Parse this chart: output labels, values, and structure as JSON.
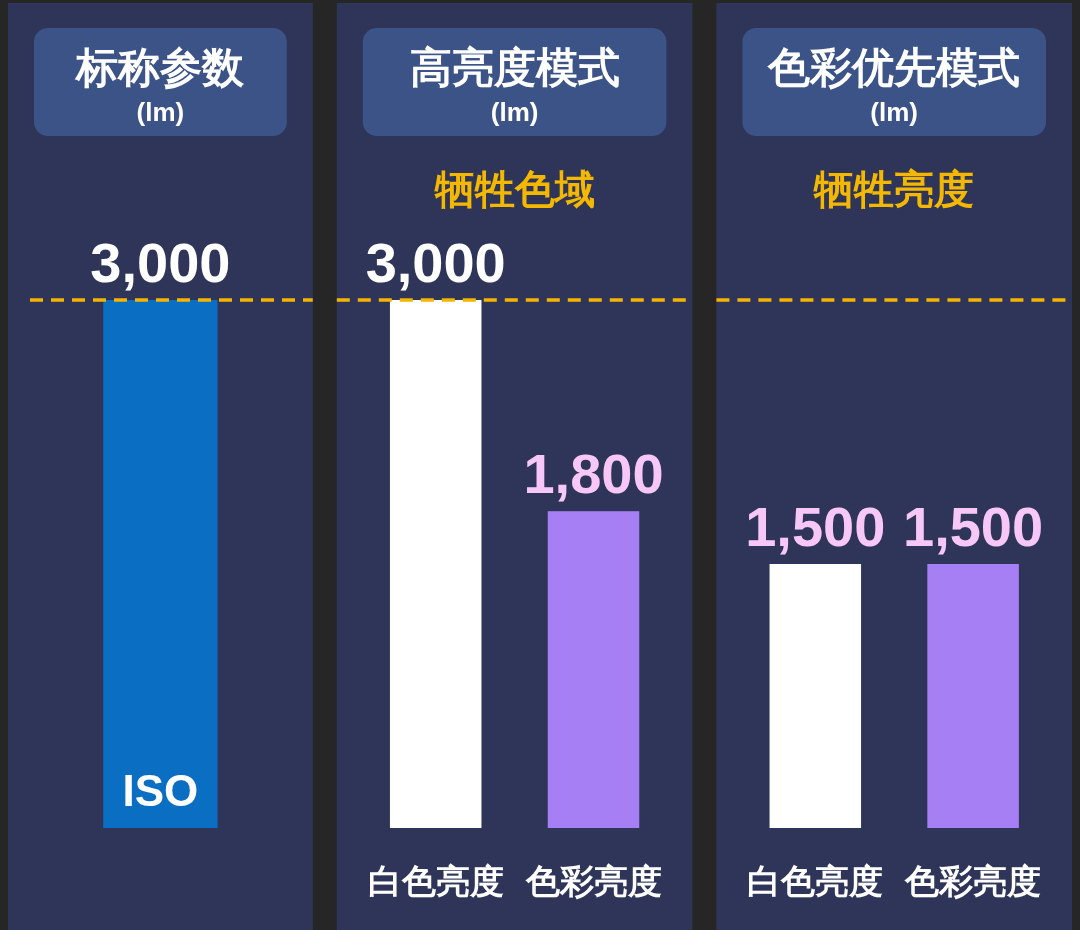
{
  "chart_data": [
    {
      "type": "bar",
      "title": "标称参数",
      "subtitle": "(lm)",
      "categories": [
        "ISO"
      ],
      "values": [
        3000
      ],
      "colors": [
        "#0a6fc2"
      ],
      "value_labels": [
        "3,000"
      ],
      "ref_lines": [
        {
          "axis": "y",
          "value": 3000,
          "color": "#f5b400",
          "line_style": "dashed"
        }
      ]
    },
    {
      "type": "bar",
      "title": "高亮度模式",
      "subtitle": "(lm)",
      "annotations": [
        "牺牲色域"
      ],
      "categories": [
        "白色亮度",
        "色彩亮度"
      ],
      "values": [
        3000,
        1800
      ],
      "colors": [
        "#ffffff",
        "#a67ff4"
      ],
      "value_labels": [
        "3,000",
        "1,800"
      ],
      "ref_lines": [
        {
          "axis": "y",
          "value": 3000,
          "color": "#f5b400",
          "line_style": "dashed"
        }
      ]
    },
    {
      "type": "bar",
      "title": "色彩优先模式",
      "subtitle": "(lm)",
      "annotations": [
        "牺牲亮度"
      ],
      "categories": [
        "白色亮度",
        "色彩亮度"
      ],
      "values": [
        1500,
        1500
      ],
      "colors": [
        "#ffffff",
        "#a67ff4"
      ],
      "value_labels": [
        "1,500",
        "1,500"
      ],
      "ref_lines": [
        {
          "axis": "y",
          "value": 3000,
          "color": "#f5b400",
          "line_style": "dashed"
        }
      ]
    }
  ]
}
